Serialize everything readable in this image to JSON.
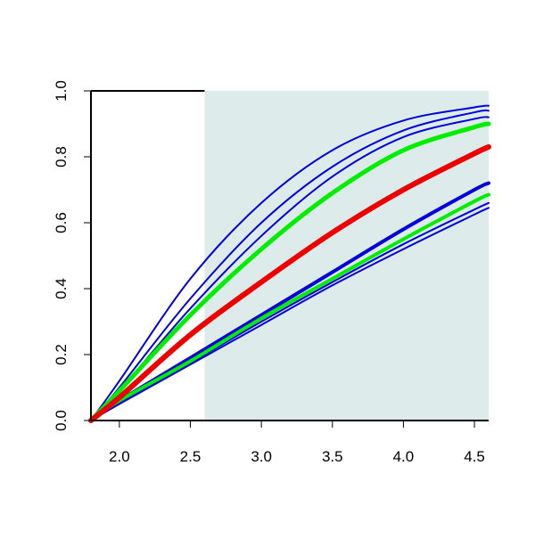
{
  "chart_data": {
    "type": "line",
    "title": "",
    "xlabel": "",
    "ylabel": "",
    "xlim": [
      1.8,
      4.6
    ],
    "ylim": [
      0.0,
      1.0
    ],
    "x_ticks": [
      "2.0",
      "2.5",
      "3.0",
      "3.5",
      "4.0",
      "4.5"
    ],
    "y_ticks": [
      "0.0",
      "0.2",
      "0.4",
      "0.6",
      "0.8",
      "1.0"
    ],
    "shaded_region": {
      "x_from": 2.6,
      "x_to": 4.6,
      "color": "#deebeb"
    },
    "grid": false,
    "legend": "none",
    "x": [
      1.8,
      2.0,
      2.5,
      3.0,
      3.5,
      4.0,
      4.5,
      4.6
    ],
    "series": [
      {
        "color": "#0000dd",
        "width": 2,
        "values": [
          0.0,
          0.12,
          0.43,
          0.66,
          0.82,
          0.91,
          0.95,
          0.955
        ]
      },
      {
        "color": "#0000dd",
        "width": 2,
        "values": [
          0.0,
          0.1,
          0.37,
          0.6,
          0.77,
          0.88,
          0.935,
          0.94
        ]
      },
      {
        "color": "#0000dd",
        "width": 2,
        "values": [
          0.0,
          0.09,
          0.34,
          0.56,
          0.74,
          0.86,
          0.915,
          0.92
        ]
      },
      {
        "color": "#00ee00",
        "width": 5,
        "values": [
          0.0,
          0.09,
          0.32,
          0.52,
          0.69,
          0.82,
          0.89,
          0.9
        ]
      },
      {
        "color": "#ee0000",
        "width": 6,
        "values": [
          0.0,
          0.07,
          0.26,
          0.42,
          0.57,
          0.7,
          0.81,
          0.83
        ]
      },
      {
        "color": "#0000dd",
        "width": 4,
        "values": [
          0.0,
          0.06,
          0.19,
          0.32,
          0.45,
          0.58,
          0.7,
          0.72
        ]
      },
      {
        "color": "#00ee00",
        "width": 4,
        "values": [
          0.0,
          0.06,
          0.18,
          0.31,
          0.43,
          0.55,
          0.665,
          0.685
        ]
      },
      {
        "color": "#0000dd",
        "width": 2,
        "values": [
          0.0,
          0.055,
          0.175,
          0.3,
          0.42,
          0.535,
          0.64,
          0.66
        ]
      },
      {
        "color": "#0000dd",
        "width": 2,
        "values": [
          0.0,
          0.05,
          0.17,
          0.29,
          0.41,
          0.52,
          0.625,
          0.645
        ]
      }
    ]
  }
}
